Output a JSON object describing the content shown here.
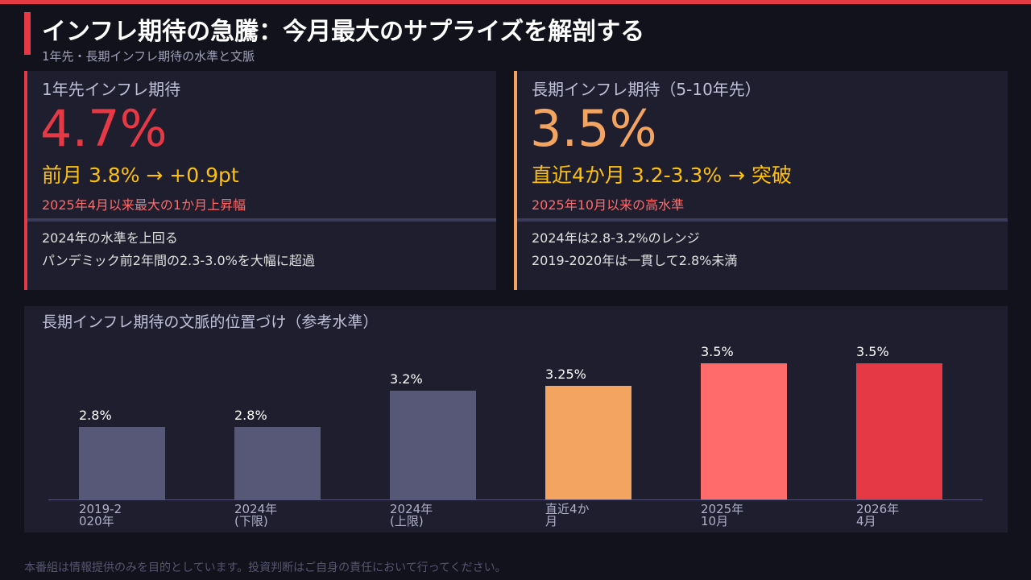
{
  "header": {
    "title": "インフレ期待の急騰：今月最大のサプライズを解剖する",
    "subtitle": "1年先・長期インフレ期待の水準と文脈"
  },
  "cards": [
    {
      "label": "1年先インフレ期待",
      "value": "4.7%",
      "change": "前月 3.8% → +0.9pt",
      "note": "2025年4月以来最大の1か月上昇幅",
      "details": [
        "2024年の水準を上回る",
        "パンデミック前2年間の2.3-3.0%を大幅に超過"
      ]
    },
    {
      "label": "長期インフレ期待（5-10年先）",
      "value": "3.5%",
      "change": "直近4か月 3.2-3.3% → 突破",
      "note": "2025年10月以来の高水準",
      "details": [
        "2024年は2.8-3.2%のレンジ",
        "2019-2020年は一貫して2.8%未満"
      ]
    }
  ],
  "chart_data": {
    "type": "bar",
    "title": "長期インフレ期待の文脈的位置づけ（参考水準）",
    "categories": [
      "2019-2020年",
      "2024年(下限)",
      "2024年(上限)",
      "直近4か月",
      "2025年10月",
      "2026年4月"
    ],
    "values": [
      2.8,
      2.8,
      3.2,
      3.25,
      3.5,
      3.5
    ],
    "value_labels": [
      "2.8%",
      "2.8%",
      "3.2%",
      "3.25%",
      "3.5%",
      "3.5%"
    ],
    "colors": [
      "#575878",
      "#575878",
      "#575878",
      "#f2a460",
      "#ff6b6b",
      "#e63946"
    ],
    "ylim": [
      2.0,
      3.8
    ]
  },
  "footer": "本番組は情報提供のみを目的としています。投資判断はご自身の責任において行ってください。"
}
